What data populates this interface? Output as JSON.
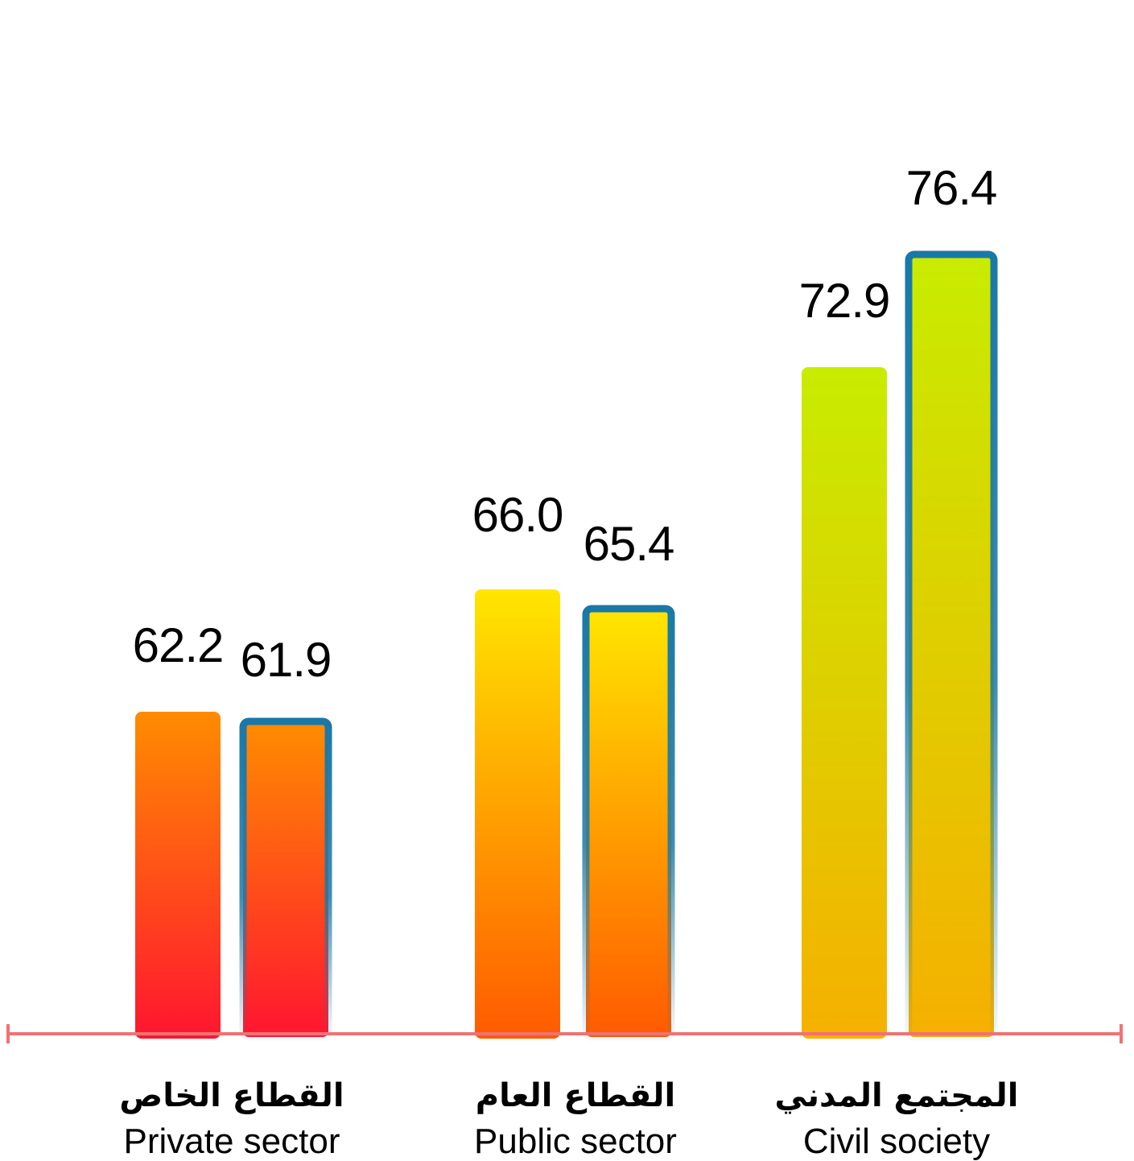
{
  "chart_data": {
    "type": "bar",
    "categories": [
      {
        "label_ar": "القطاع الخاص",
        "label_en": "Private sector"
      },
      {
        "label_ar": "القطاع العام",
        "label_en": "Public sector"
      },
      {
        "label_ar": "المجتمع المدني",
        "label_en": "Civil society"
      }
    ],
    "series": [
      {
        "values": [
          62.2,
          66.0,
          72.9
        ],
        "value_labels": [
          "62.2",
          "66.0",
          "72.9"
        ],
        "outlined": false
      },
      {
        "values": [
          61.9,
          65.4,
          76.4
        ],
        "value_labels": [
          "61.9",
          "65.4",
          "76.4"
        ],
        "outlined": true
      }
    ],
    "ylim": [
      52.2,
      78.2
    ],
    "grid": false,
    "colors": {
      "axis": "#f07272",
      "outline": "#1a78a8",
      "private_top": "#ff8c00",
      "private_bottom": "#ff1530",
      "public_top": "#ffe600",
      "public_bottom": "#ff5a00",
      "civil_top": "#c8ec00",
      "civil_bottom": "#f6b000"
    }
  }
}
